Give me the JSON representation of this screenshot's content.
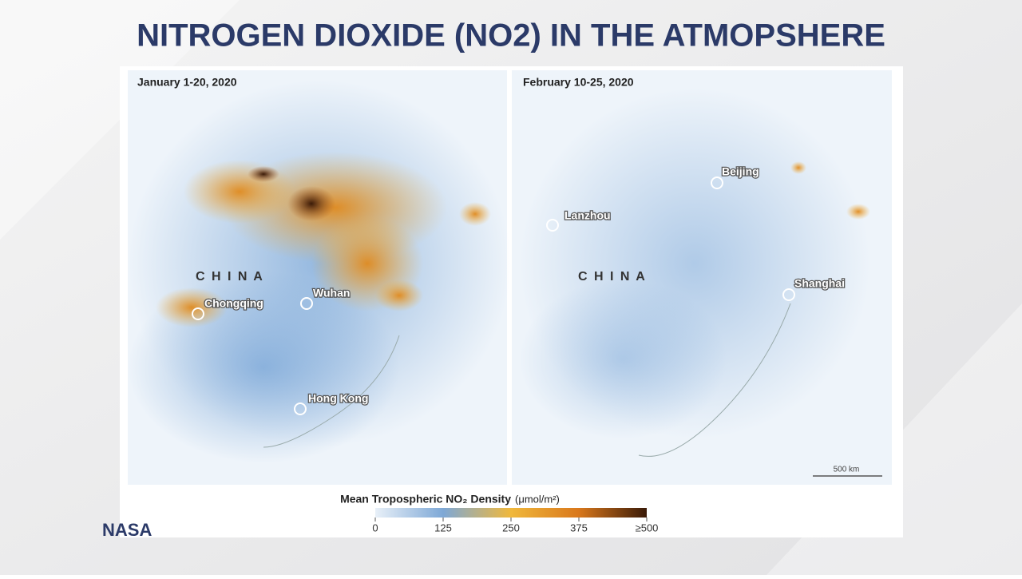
{
  "header": {
    "title": "NITROGEN DIOXIDE (NO2) IN THE ATMOPSHERE"
  },
  "panels": [
    {
      "date": "January 1-20, 2020",
      "country": "C H I N A",
      "cities": [
        "Chongqing",
        "Wuhan",
        "Hong Kong"
      ]
    },
    {
      "date": "February 10-25, 2020",
      "country": "C H I N A",
      "cities": [
        "Beijing",
        "Lanzhou",
        "Shanghai"
      ],
      "scale": "500 km"
    }
  ],
  "legend": {
    "title": "Mean Tropospheric NO₂ Density",
    "unit": "(μmol/m²)",
    "range": [
      0,
      500
    ],
    "ticks": [
      0,
      125,
      250,
      375,
      {
        "value": 500,
        "label": "≥500"
      }
    ]
  },
  "source": "NASA"
}
